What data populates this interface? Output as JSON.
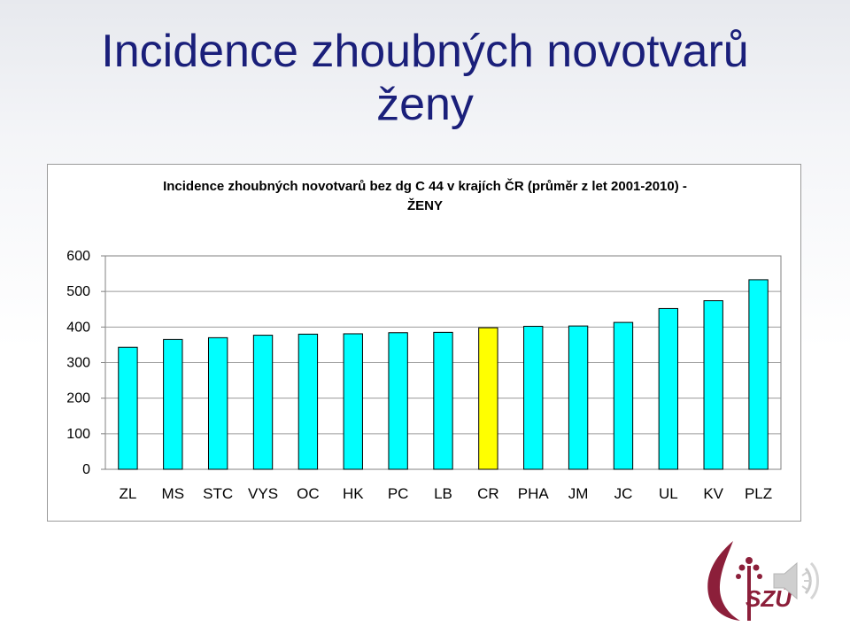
{
  "slide": {
    "title_line1": "Incidence zhoubných novotvarů",
    "title_line2": "ženy"
  },
  "chart_data": {
    "type": "bar",
    "title_line1": "Incidence zhoubných novotvarů bez dg C 44 v krajích ČR (průměr z let 2001-2010) -",
    "title_line2": "ŽENY",
    "categories": [
      "ZL",
      "MS",
      "STC",
      "VYS",
      "OC",
      "HK",
      "PC",
      "LB",
      "CR",
      "PHA",
      "JM",
      "JC",
      "UL",
      "KV",
      "PLZ"
    ],
    "values": [
      343,
      365,
      370,
      377,
      380,
      381,
      384,
      385,
      398,
      402,
      403,
      413,
      452,
      474,
      533
    ],
    "highlight_category": "CR",
    "bar_color": "#00ffff",
    "highlight_color": "#ffff00",
    "ylim": [
      0,
      600
    ],
    "yticks": [
      0,
      100,
      200,
      300,
      400,
      500,
      600
    ],
    "grid": true,
    "legend": "none"
  },
  "logo": {
    "text": "SZÚ",
    "color": "#8c1f3a"
  }
}
